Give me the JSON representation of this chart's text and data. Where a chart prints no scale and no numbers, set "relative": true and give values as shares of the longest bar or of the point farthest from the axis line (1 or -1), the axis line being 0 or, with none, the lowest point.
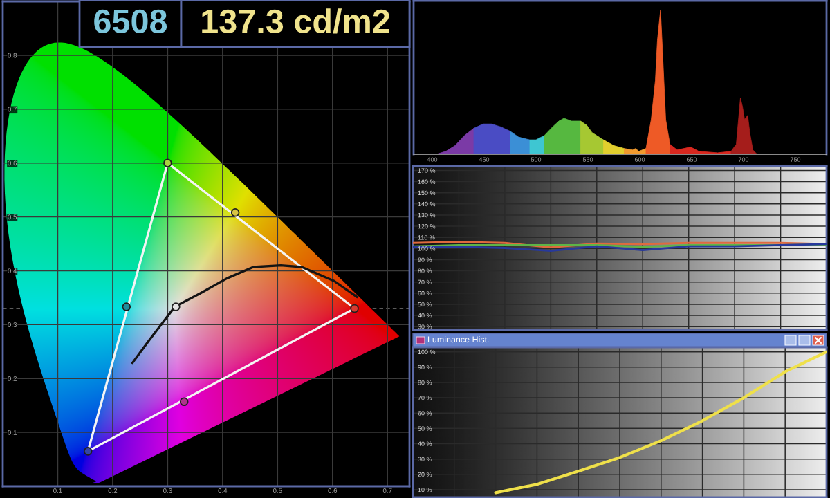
{
  "chart_data": [
    {
      "type": "line",
      "annotations": [
        "6508",
        "137.3 cd/m2"
      ],
      "series": [
        {
          "type": "line",
          "color": "#f4f4f4",
          "x": [
            0.3,
            0.64
          ],
          "values": [
            0.6,
            0.33
          ]
        },
        {
          "type": "line",
          "color": "#f4f4f4",
          "x": [
            0.155,
            0.64
          ],
          "values": [
            0.065,
            0.33
          ]
        },
        {
          "type": "line",
          "color": "#f4f4f4",
          "x": [
            0.155,
            0.3
          ],
          "values": [
            0.065,
            0.6
          ]
        },
        {
          "type": "line",
          "color": "#141414",
          "x": [
            0.236,
            0.267,
            0.313,
            0.359,
            0.408,
            0.456,
            0.506,
            0.544,
            0.603,
            0.645
          ],
          "values": [
            0.229,
            0.272,
            0.333,
            0.358,
            0.386,
            0.407,
            0.41,
            0.407,
            0.381,
            0.351
          ]
        },
        {
          "type": "scatter",
          "marker": "circle",
          "colors": [
            "#a8d040",
            "#d83a30",
            "#3444a8",
            "#1f8e9c",
            "#d8c444",
            "#b0348c",
            "#e4e4e4"
          ],
          "x": [
            0.3,
            0.64,
            0.155,
            0.225,
            0.423,
            0.33,
            0.315
          ],
          "values": [
            0.6,
            0.33,
            0.065,
            0.333,
            0.508,
            0.157,
            0.333
          ]
        }
      ],
      "xlim": [
        0,
        0.74
      ],
      "ylim": [
        0,
        0.9
      ],
      "xticks": [
        0.1,
        0.2,
        0.3,
        0.4,
        0.5,
        0.6,
        0.7
      ],
      "yticks": [
        0.1,
        0.2,
        0.3,
        0.4,
        0.5,
        0.6,
        0.7,
        0.8
      ],
      "grid": true,
      "ref_lines": [
        {
          "axis": "y",
          "value": 0.33,
          "line_style": "dashed",
          "color": "#7a7a7a"
        }
      ]
    },
    {
      "type": "area",
      "relative": true,
      "series": [
        {
          "color": "#7b3aa6",
          "x": [
            404,
            413,
            422,
            431,
            440
          ],
          "values": [
            0.0,
            0.02,
            0.06,
            0.13,
            0.18
          ]
        },
        {
          "color": "#4a4cc4",
          "x": [
            440,
            449,
            457,
            466,
            475
          ],
          "values": [
            0.18,
            0.21,
            0.21,
            0.19,
            0.16
          ]
        },
        {
          "color": "#3b8fd6",
          "x": [
            475,
            483,
            488,
            494
          ],
          "values": [
            0.16,
            0.12,
            0.11,
            0.1
          ]
        },
        {
          "color": "#3ec6d2",
          "x": [
            494,
            500,
            508
          ],
          "values": [
            0.1,
            0.1,
            0.13
          ]
        },
        {
          "color": "#56b840",
          "x": [
            508,
            516,
            522,
            527,
            534,
            540,
            543
          ],
          "values": [
            0.13,
            0.19,
            0.23,
            0.25,
            0.23,
            0.23,
            0.23
          ]
        },
        {
          "color": "#a6c832",
          "x": [
            543,
            549,
            554,
            565
          ],
          "values": [
            0.23,
            0.2,
            0.15,
            0.1
          ]
        },
        {
          "color": "#e2cf2e",
          "x": [
            565,
            575,
            585
          ],
          "values": [
            0.1,
            0.06,
            0.04
          ]
        },
        {
          "color": "#f19a2e",
          "x": [
            585,
            593,
            596,
            599,
            606
          ],
          "values": [
            0.04,
            0.03,
            0.04,
            0.02,
            0.04
          ]
        },
        {
          "color": "#ee5a26",
          "x": [
            606,
            611,
            615,
            617,
            620,
            622,
            625,
            629
          ],
          "values": [
            0.04,
            0.24,
            0.51,
            0.79,
            1.0,
            0.7,
            0.24,
            0.07
          ]
        },
        {
          "color": "#d8281f",
          "x": [
            629,
            636,
            649,
            657,
            675,
            688
          ],
          "values": [
            0.07,
            0.03,
            0.05,
            0.02,
            0.01,
            0.02
          ]
        },
        {
          "color": "#a51d1b",
          "x": [
            688,
            693,
            697,
            699,
            701,
            704,
            706,
            709,
            713
          ],
          "values": [
            0.02,
            0.07,
            0.39,
            0.33,
            0.24,
            0.27,
            0.15,
            0.03,
            0.0
          ]
        }
      ],
      "xlim": [
        382,
        780
      ],
      "xticks": [
        400,
        450,
        500,
        550,
        600,
        650,
        700,
        750
      ],
      "tick_labels": "x"
    },
    {
      "type": "line",
      "categories": [
        null,
        null,
        null,
        null,
        null,
        null,
        null,
        null,
        null,
        null
      ],
      "series": [
        {
          "color": "#e06a3e",
          "values": [
            105,
            106,
            105,
            101,
            104.5,
            104,
            105,
            105,
            105,
            104
          ]
        },
        {
          "color": "#5fb446",
          "values": [
            102,
            103,
            103,
            103,
            103,
            101.5,
            103,
            103,
            103,
            103.5
          ]
        },
        {
          "color": "#27399c",
          "values": [
            101.5,
            101.5,
            100.5,
            98,
            102,
            98.5,
            102,
            102,
            103,
            104
          ]
        }
      ],
      "ylim": [
        27,
        174
      ],
      "yticks": [
        {
          "value": 30,
          "label": "30 %"
        },
        {
          "value": 40,
          "label": "40 %"
        },
        {
          "value": 50,
          "label": "50 %"
        },
        {
          "value": 60,
          "label": "60 %"
        },
        {
          "value": 70,
          "label": "70 %"
        },
        {
          "value": 80,
          "label": "80 %"
        },
        {
          "value": 90,
          "label": "90 %"
        },
        {
          "value": 100,
          "label": "100 %"
        },
        {
          "value": 110,
          "label": "110 %"
        },
        {
          "value": 120,
          "label": "120 %"
        },
        {
          "value": 130,
          "label": "130 %"
        },
        {
          "value": 140,
          "label": "140 %"
        },
        {
          "value": 150,
          "label": "150 %"
        },
        {
          "value": 160,
          "label": "160 %"
        },
        {
          "value": 170,
          "label": "170 %"
        }
      ],
      "tick_labels": "y",
      "grid": true
    },
    {
      "type": "line",
      "title": "Luminance Hist.",
      "categories": [
        null,
        null,
        null,
        null,
        null,
        null,
        null,
        null,
        null,
        null,
        null
      ],
      "series": [
        {
          "color": "#efe04a",
          "values": [
            null,
            null,
            8,
            13.5,
            22,
            31,
            42,
            55,
            70,
            87,
            100
          ]
        }
      ],
      "ylim": [
        5,
        103
      ],
      "yticks": [
        {
          "value": 10,
          "label": "10 %"
        },
        {
          "value": 20,
          "label": "20 %"
        },
        {
          "value": 30,
          "label": "30 %"
        },
        {
          "value": 40,
          "label": "40 %"
        },
        {
          "value": 50,
          "label": "50 %"
        },
        {
          "value": 60,
          "label": "60 %"
        },
        {
          "value": 70,
          "label": "70 %"
        },
        {
          "value": 80,
          "label": "80 %"
        },
        {
          "value": 90,
          "label": "90 %"
        },
        {
          "value": 100,
          "label": "100 %"
        }
      ],
      "tick_labels": "y",
      "grid": true
    }
  ]
}
